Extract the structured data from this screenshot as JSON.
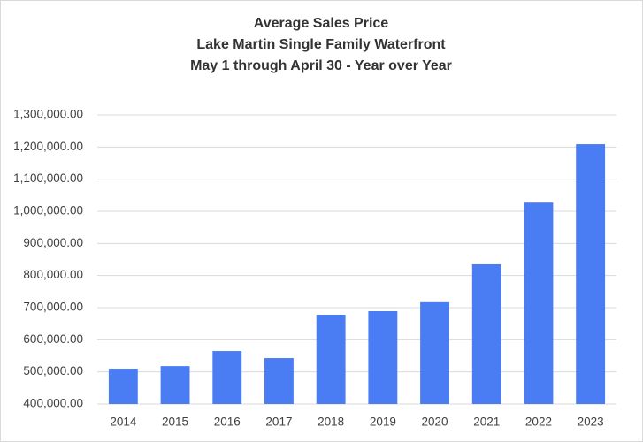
{
  "chart_data": {
    "type": "bar",
    "title": [
      "Average Sales Price",
      "Lake Martin Single Family Waterfront",
      "May 1 through April 30 - Year over Year"
    ],
    "categories": [
      "2014",
      "2015",
      "2016",
      "2017",
      "2018",
      "2019",
      "2020",
      "2021",
      "2022",
      "2023"
    ],
    "values": [
      510000,
      518000,
      565000,
      543000,
      678000,
      689000,
      717000,
      835000,
      1027000,
      1209000
    ],
    "color": "#4a7cf4",
    "ylim": [
      400000,
      1300000
    ],
    "yticks": [
      {
        "value": 400000,
        "label": "400,000.00"
      },
      {
        "value": 500000,
        "label": "500,000.00"
      },
      {
        "value": 600000,
        "label": "600,000.00"
      },
      {
        "value": 700000,
        "label": "700,000.00"
      },
      {
        "value": 800000,
        "label": "800,000.00"
      },
      {
        "value": 900000,
        "label": "900,000.00"
      },
      {
        "value": 1000000,
        "label": "1,000,000.00"
      },
      {
        "value": 1100000,
        "label": "1,100,000.00"
      },
      {
        "value": 1200000,
        "label": "1,200,000.00"
      },
      {
        "value": 1300000,
        "label": "1,300,000.00"
      }
    ],
    "grid": true
  }
}
